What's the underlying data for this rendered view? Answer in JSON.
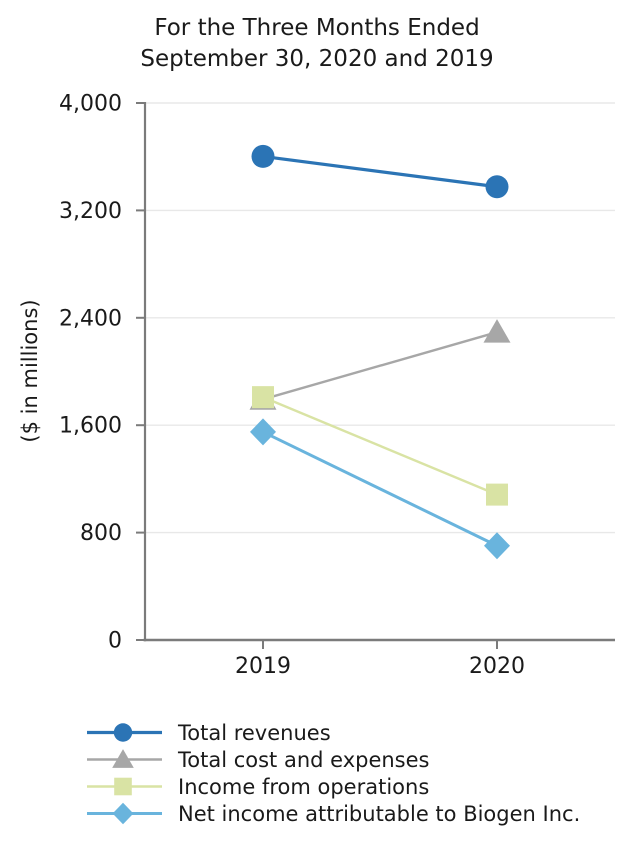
{
  "title": {
    "line1": "For the Three Months Ended",
    "line2": "September 30, 2020 and 2019"
  },
  "chart_data": {
    "type": "line",
    "title": "For the Three Months Ended September 30, 2020 and 2019",
    "categories": [
      "2019",
      "2020"
    ],
    "series": [
      {
        "name": "Total revenues",
        "marker": "circle",
        "color": "#2B74B5",
        "line_width": 3.2,
        "values": [
          3602,
          3376
        ]
      },
      {
        "name": "Total cost and expenses",
        "marker": "triangle",
        "color": "#A7A7A7",
        "line_width": 2.4,
        "values": [
          1793,
          2293
        ]
      },
      {
        "name": "Income from operations",
        "marker": "square",
        "color": "#D9E3A4",
        "line_width": 2.4,
        "values": [
          1809,
          1083
        ]
      },
      {
        "name": "Net income attributable to Biogen Inc.",
        "marker": "diamond",
        "color": "#69B4DD",
        "line_width": 3.0,
        "values": [
          1550,
          702
        ]
      }
    ],
    "xlabel": "",
    "ylabel": "($ in millions)",
    "ylim": [
      0,
      4000
    ],
    "y_ticks": [
      0,
      800,
      1600,
      2400,
      3200,
      4000
    ],
    "y_tick_labels": [
      "0",
      "800",
      "1,600",
      "2,400",
      "3,200",
      "4,000"
    ],
    "grid": "horizontal",
    "legend_position": "bottom-left",
    "axis_color": "#7b7b7b",
    "gridline_color": "#e8e8e8"
  }
}
